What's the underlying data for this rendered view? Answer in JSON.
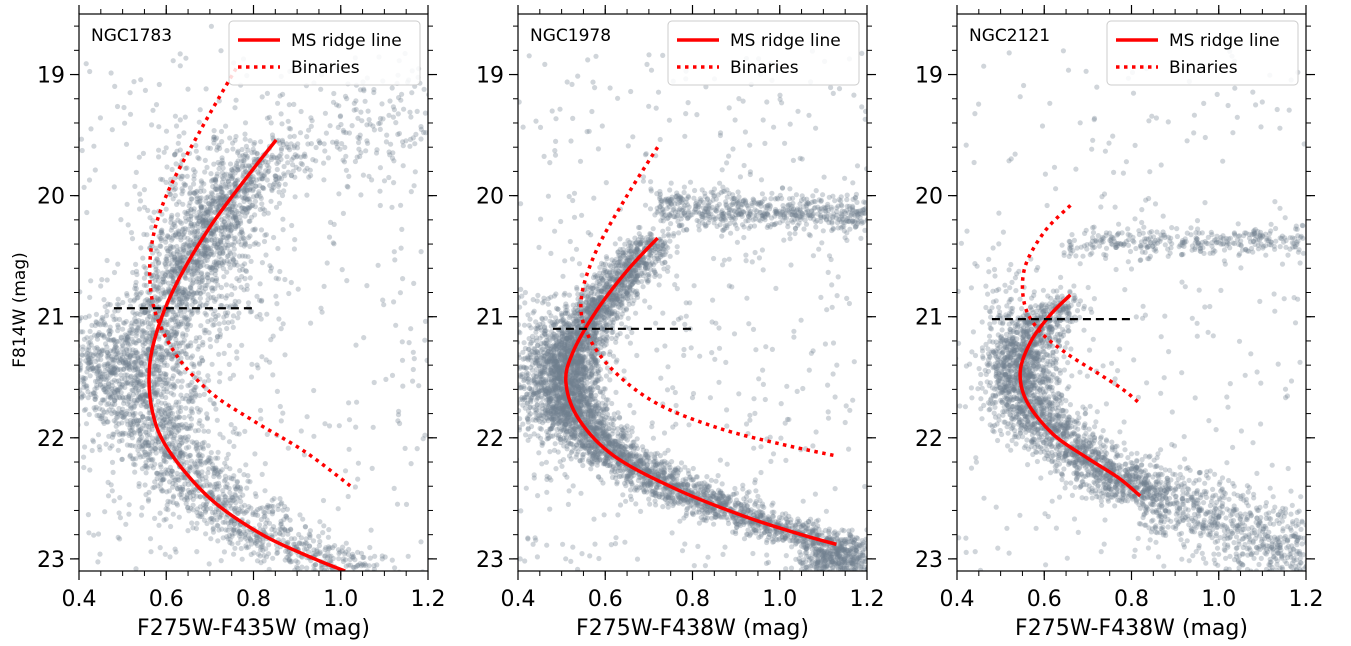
{
  "figure": {
    "ylabel": "F814W (mag)"
  },
  "legend": {
    "ridge_label": "MS ridge line",
    "binaries_label": "Binaries"
  },
  "colors": {
    "stars": "#6f7f8f",
    "ridge": "#ff0000",
    "binaries": "#ff0000",
    "split": "#000000"
  },
  "chart_data": [
    {
      "type": "scatter",
      "cluster": "NGC1783",
      "xlabel": "F275W-F435W (mag)",
      "ylabel": "F814W (mag)",
      "xlim": [
        0.4,
        1.2
      ],
      "ylim": [
        23.1,
        18.5
      ],
      "y_inverted": true,
      "xticks": [
        "0.4",
        "0.6",
        "0.8",
        "1.0",
        "1.2"
      ],
      "yticks": [
        "19",
        "20",
        "21",
        "22",
        "23"
      ],
      "legend_position": "top-right",
      "series": [
        {
          "name": "MS ridge line",
          "style": "solid",
          "points": [
            [
              0.852,
              19.54
            ],
            [
              0.78,
              19.87
            ],
            [
              0.7,
              20.26
            ],
            [
              0.63,
              20.68
            ],
            [
              0.585,
              21.05
            ],
            [
              0.562,
              21.4
            ],
            [
              0.568,
              21.78
            ],
            [
              0.605,
              22.1
            ],
            [
              0.7,
              22.5
            ],
            [
              0.82,
              22.8
            ],
            [
              0.94,
              23.0
            ],
            [
              1.01,
              23.1
            ]
          ]
        },
        {
          "name": "Binaries",
          "style": "dotted",
          "points": [
            [
              0.76,
              18.95
            ],
            [
              0.68,
              19.45
            ],
            [
              0.6,
              20.0
            ],
            [
              0.565,
              20.45
            ],
            [
              0.57,
              20.9
            ],
            [
              0.62,
              21.3
            ],
            [
              0.7,
              21.62
            ],
            [
              0.8,
              21.86
            ],
            [
              0.92,
              22.12
            ],
            [
              1.03,
              22.42
            ]
          ]
        },
        {
          "name": "",
          "style": "dashed",
          "points": [
            [
              0.48,
              20.93
            ],
            [
              0.8,
              20.93
            ]
          ]
        }
      ],
      "stars": {
        "n": 4200,
        "components": [
          {
            "weight": 0.62,
            "track": "ridge",
            "dx": 0.045,
            "ymin": 19.55,
            "ymax": 23.1
          },
          {
            "weight": 0.15,
            "track": "blob",
            "cx": 0.7,
            "cy": 20.35,
            "sx": 0.08,
            "sy": 0.45
          },
          {
            "weight": 0.1,
            "track": "blob",
            "cx": 0.45,
            "cy": 21.45,
            "sx": 0.05,
            "sy": 0.25
          },
          {
            "weight": 0.09,
            "track": "field"
          },
          {
            "weight": 0.04,
            "track": "upper",
            "x0": 0.85,
            "x1": 1.2,
            "y0": 19.6,
            "y1": 19.3,
            "sy": 0.25
          }
        ]
      }
    },
    {
      "type": "scatter",
      "cluster": "NGC1978",
      "xlabel": "F275W-F438W (mag)",
      "ylabel": "",
      "xlim": [
        0.4,
        1.2
      ],
      "ylim": [
        23.1,
        18.5
      ],
      "y_inverted": true,
      "xticks": [
        "0.4",
        "0.6",
        "0.8",
        "1.0",
        "1.2"
      ],
      "yticks": [
        "19",
        "20",
        "21",
        "22",
        "23"
      ],
      "legend_position": "top-right",
      "series": [
        {
          "name": "MS ridge line",
          "style": "solid",
          "points": [
            [
              0.72,
              20.35
            ],
            [
              0.65,
              20.62
            ],
            [
              0.58,
              20.95
            ],
            [
              0.525,
              21.3
            ],
            [
              0.51,
              21.55
            ],
            [
              0.54,
              21.85
            ],
            [
              0.62,
              22.15
            ],
            [
              0.76,
              22.42
            ],
            [
              0.92,
              22.65
            ],
            [
              1.05,
              22.8
            ],
            [
              1.13,
              22.88
            ]
          ]
        },
        {
          "name": "Binaries",
          "style": "dotted",
          "points": [
            [
              0.72,
              19.6
            ],
            [
              0.65,
              20.0
            ],
            [
              0.58,
              20.45
            ],
            [
              0.545,
              20.85
            ],
            [
              0.56,
              21.15
            ],
            [
              0.62,
              21.45
            ],
            [
              0.72,
              21.72
            ],
            [
              0.86,
              21.92
            ],
            [
              1.0,
              22.05
            ],
            [
              1.13,
              22.15
            ]
          ]
        },
        {
          "name": "",
          "style": "dashed",
          "points": [
            [
              0.48,
              21.1
            ],
            [
              0.8,
              21.1
            ]
          ]
        }
      ],
      "stars": {
        "n": 6000,
        "components": [
          {
            "weight": 0.72,
            "track": "ridge",
            "dx": 0.03,
            "ymin": 20.35,
            "ymax": 23.1
          },
          {
            "weight": 0.1,
            "track": "blob",
            "cx": 0.47,
            "cy": 21.5,
            "sx": 0.04,
            "sy": 0.3
          },
          {
            "weight": 0.08,
            "track": "field"
          },
          {
            "weight": 0.1,
            "track": "upper",
            "x0": 0.72,
            "x1": 1.2,
            "y0": 20.1,
            "y1": 20.15,
            "sy": 0.08
          }
        ]
      }
    },
    {
      "type": "scatter",
      "cluster": "NGC2121",
      "xlabel": "F275W-F438W (mag)",
      "ylabel": "",
      "xlim": [
        0.4,
        1.2
      ],
      "ylim": [
        23.1,
        18.5
      ],
      "y_inverted": true,
      "xticks": [
        "0.4",
        "0.6",
        "0.8",
        "1.0",
        "1.2"
      ],
      "yticks": [
        "19",
        "20",
        "21",
        "22",
        "23"
      ],
      "legend_position": "top-right",
      "series": [
        {
          "name": "MS ridge line",
          "style": "solid",
          "points": [
            [
              0.66,
              20.82
            ],
            [
              0.615,
              20.98
            ],
            [
              0.57,
              21.2
            ],
            [
              0.545,
              21.45
            ],
            [
              0.56,
              21.7
            ],
            [
              0.62,
              21.97
            ],
            [
              0.7,
              22.17
            ],
            [
              0.77,
              22.33
            ],
            [
              0.82,
              22.48
            ]
          ]
        },
        {
          "name": "Binaries",
          "style": "dotted",
          "points": [
            [
              0.66,
              20.08
            ],
            [
              0.6,
              20.3
            ],
            [
              0.555,
              20.6
            ],
            [
              0.555,
              20.9
            ],
            [
              0.59,
              21.12
            ],
            [
              0.65,
              21.3
            ],
            [
              0.72,
              21.46
            ],
            [
              0.78,
              21.6
            ],
            [
              0.82,
              21.72
            ]
          ]
        },
        {
          "name": "",
          "style": "dashed",
          "points": [
            [
              0.48,
              21.02
            ],
            [
              0.8,
              21.02
            ]
          ]
        }
      ],
      "stars": {
        "n": 3600,
        "components": [
          {
            "weight": 0.55,
            "track": "ridge",
            "dx": 0.035,
            "ymin": 20.85,
            "ymax": 22.5
          },
          {
            "weight": 0.2,
            "track": "lowerms",
            "x0": 0.82,
            "x1": 1.2,
            "y0": 22.48,
            "y1": 22.95,
            "sy": 0.17
          },
          {
            "weight": 0.08,
            "track": "field"
          },
          {
            "weight": 0.09,
            "track": "upper",
            "x0": 0.64,
            "x1": 1.2,
            "y0": 20.4,
            "y1": 20.37,
            "sy": 0.06
          },
          {
            "weight": 0.08,
            "track": "blob",
            "cx": 0.53,
            "cy": 21.3,
            "sx": 0.04,
            "sy": 0.3
          }
        ]
      }
    }
  ]
}
